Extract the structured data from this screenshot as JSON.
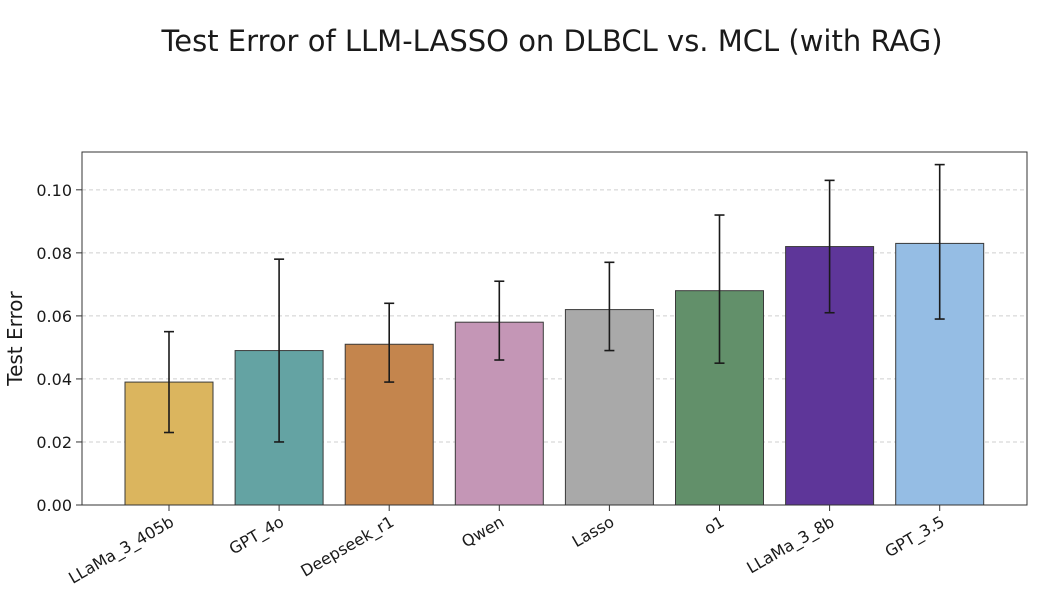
{
  "chart_data": {
    "type": "bar",
    "title": "Test Error of LLM-LASSO on DLBCL vs. MCL (with RAG)",
    "xlabel": "",
    "ylabel": "Test Error",
    "ylim": [
      0,
      0.112
    ],
    "yticks": [
      "0.00",
      "0.02",
      "0.04",
      "0.06",
      "0.08",
      "0.10"
    ],
    "grid": "horizontal dashed",
    "categories": [
      "LLaMa_3_405b",
      "GPT_4o",
      "Deepseek_r1",
      "Qwen",
      "Lasso",
      "o1",
      "LLaMa_3_8b",
      "GPT_3.5"
    ],
    "values": [
      0.039,
      0.049,
      0.051,
      0.058,
      0.062,
      0.068,
      0.082,
      0.083
    ],
    "error_low": [
      0.023,
      0.02,
      0.039,
      0.046,
      0.049,
      0.045,
      0.061,
      0.059
    ],
    "error_high": [
      0.055,
      0.078,
      0.064,
      0.071,
      0.077,
      0.092,
      0.103,
      0.108
    ],
    "colors": [
      "#dbb55e",
      "#64a3a3",
      "#c4854d",
      "#c496b6",
      "#a9a9a9",
      "#62906a",
      "#5e3699",
      "#95bde4"
    ]
  }
}
